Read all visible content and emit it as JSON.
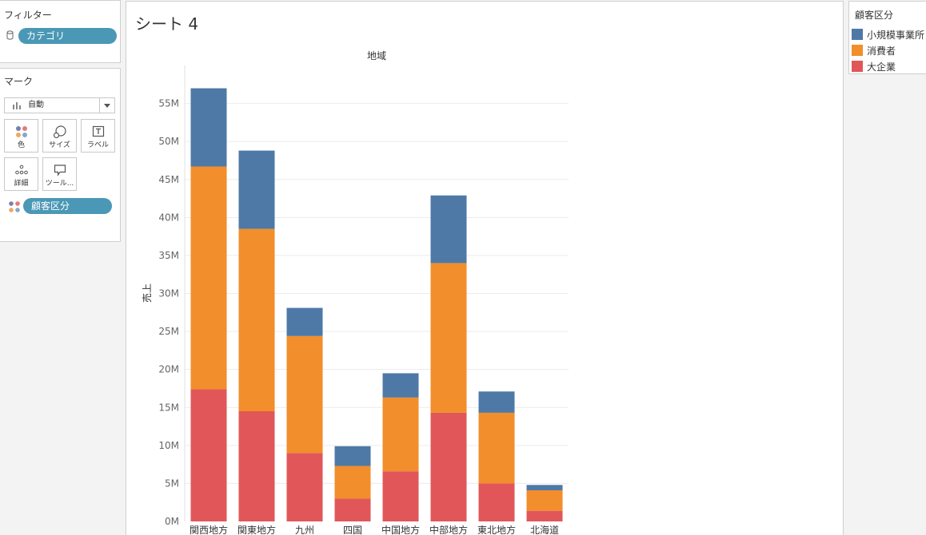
{
  "filters": {
    "title": "フィルター",
    "pill_label": "カテゴリ"
  },
  "marks": {
    "title": "マーク",
    "mark_type": "自動",
    "buttons": [
      {
        "label": "色",
        "icon": "color-icon"
      },
      {
        "label": "サイズ",
        "icon": "size-icon"
      },
      {
        "label": "ラベル",
        "icon": "label-icon"
      },
      {
        "label": "詳細",
        "icon": "detail-icon"
      },
      {
        "label": "ツール...",
        "icon": "tooltip-icon"
      }
    ],
    "color_pill": "顧客区分"
  },
  "sheet": {
    "title": "シート 4"
  },
  "legend": {
    "title": "顧客区分",
    "items": [
      {
        "label": "小規模事業所",
        "color": "#4e79a7"
      },
      {
        "label": "消費者",
        "color": "#f28e2b"
      },
      {
        "label": "大企業",
        "color": "#e15759"
      }
    ]
  },
  "chart_data": {
    "type": "bar",
    "stacked": true,
    "title": "地域",
    "xlabel": "",
    "ylabel": "売上",
    "ylim": [
      0,
      60000000
    ],
    "y_ticks": [
      0,
      5000000,
      10000000,
      15000000,
      20000000,
      25000000,
      30000000,
      35000000,
      40000000,
      45000000,
      50000000,
      55000000
    ],
    "y_tick_labels": [
      "0M",
      "5M",
      "10M",
      "15M",
      "20M",
      "25M",
      "30M",
      "35M",
      "40M",
      "45M",
      "50M",
      "55M"
    ],
    "categories": [
      "関西地方",
      "関東地方",
      "九州",
      "四国",
      "中国地方",
      "中部地方",
      "東北地方",
      "北海道"
    ],
    "series": [
      {
        "name": "大企業",
        "color": "#e15759",
        "values": [
          17400000,
          14500000,
          9000000,
          3000000,
          6600000,
          14300000,
          5000000,
          1400000
        ]
      },
      {
        "name": "消費者",
        "color": "#f28e2b",
        "values": [
          29300000,
          24000000,
          15400000,
          4300000,
          9700000,
          19700000,
          9300000,
          2700000
        ]
      },
      {
        "name": "小規模事業所",
        "color": "#4e79a7",
        "values": [
          10300000,
          10300000,
          3700000,
          2600000,
          3200000,
          8900000,
          2800000,
          700000
        ]
      }
    ]
  }
}
